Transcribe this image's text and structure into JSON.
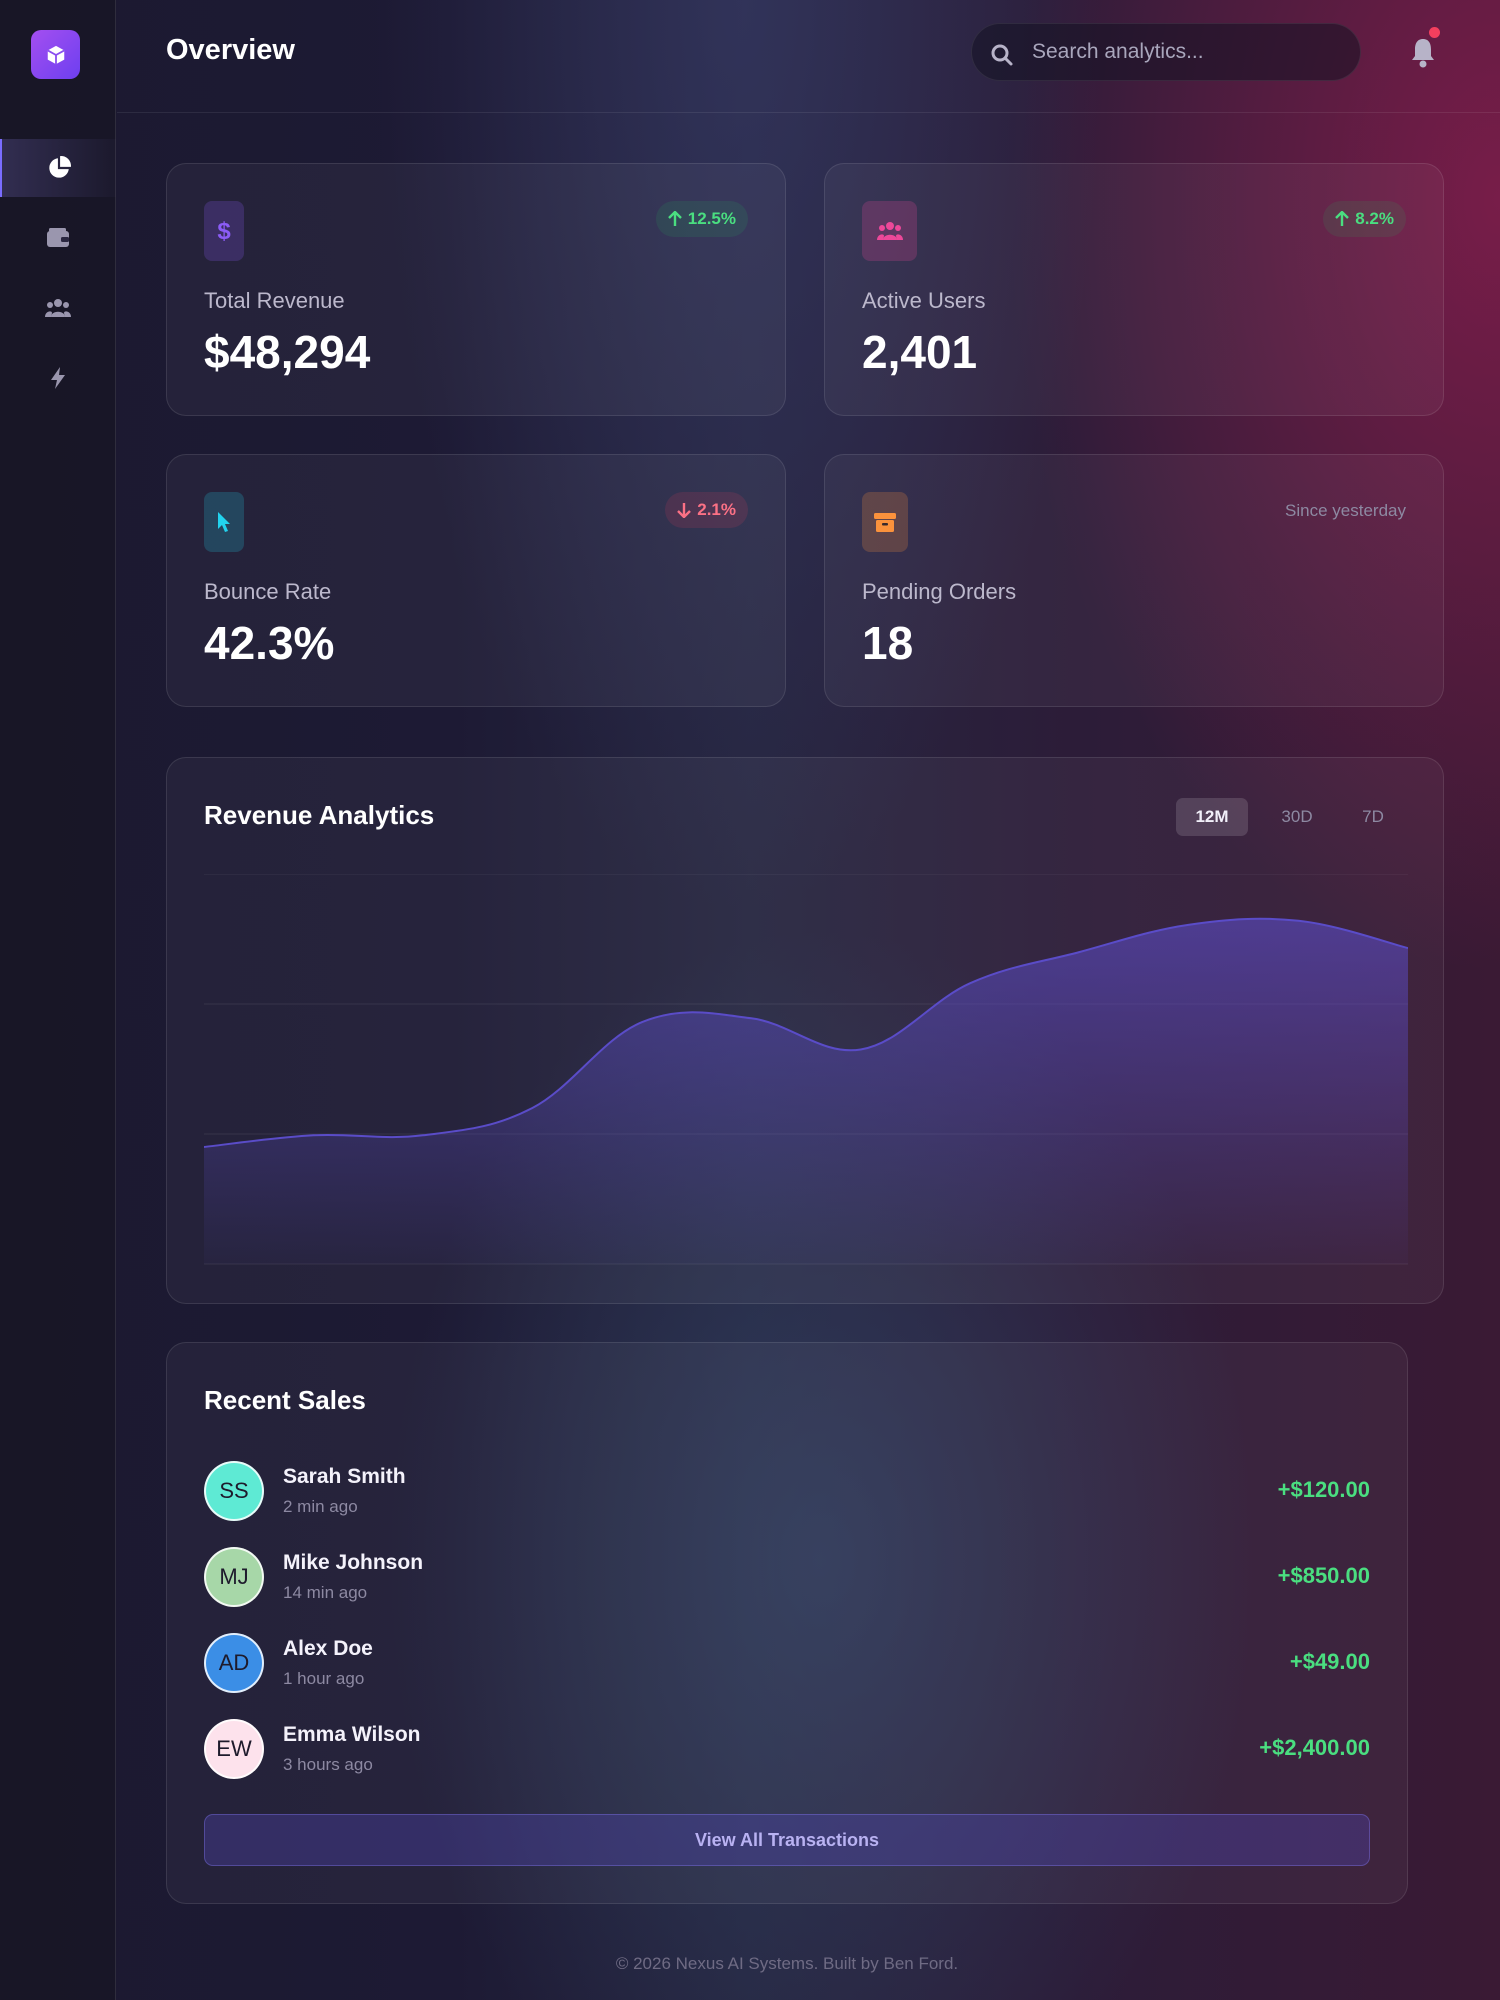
{
  "header": {
    "title": "Overview",
    "search_placeholder": "Search analytics..."
  },
  "sidebar": {
    "items": [
      {
        "name": "chart-pie-icon",
        "active": true
      },
      {
        "name": "wallet-icon",
        "active": false
      },
      {
        "name": "users-icon",
        "active": false
      },
      {
        "name": "bolt-icon",
        "active": false
      }
    ]
  },
  "stats": [
    {
      "label": "Total Revenue",
      "value": "$48,294",
      "badge": "12.5%",
      "trend": "up",
      "icon": "dollar-icon",
      "accent": "#8b5cf6"
    },
    {
      "label": "Active Users",
      "value": "2,401",
      "badge": "8.2%",
      "trend": "up",
      "icon": "users-icon",
      "accent": "#ec4899"
    },
    {
      "label": "Bounce Rate",
      "value": "42.3%",
      "badge": "2.1%",
      "trend": "down",
      "icon": "cursor-icon",
      "accent": "#22d3ee"
    },
    {
      "label": "Pending Orders",
      "value": "18",
      "note": "Since yesterday",
      "icon": "box-icon",
      "accent": "#fb923c"
    }
  ],
  "chart": {
    "title": "Revenue Analytics",
    "ranges": [
      "12M",
      "30D",
      "7D"
    ],
    "active_range": "12M"
  },
  "chart_data": {
    "type": "area",
    "title": "Revenue Analytics",
    "xlabel": "",
    "ylabel": "",
    "x": [
      0,
      1,
      2,
      3,
      4,
      5,
      6,
      7,
      8,
      9,
      10,
      11
    ],
    "values": [
      30,
      33,
      33,
      40,
      62,
      63,
      55,
      72,
      80,
      87,
      88,
      81
    ],
    "ylim": [
      0,
      100
    ],
    "grid": true,
    "series_color": "#5b4bc4"
  },
  "sales": {
    "title": "Recent Sales",
    "items": [
      {
        "initials": "SS",
        "name": "Sarah Smith",
        "time": "2 min ago",
        "amount": "+$120.00",
        "color": "#5eead4"
      },
      {
        "initials": "MJ",
        "name": "Mike Johnson",
        "time": "14 min ago",
        "amount": "+$850.00",
        "color": "#a7d7a8"
      },
      {
        "initials": "AD",
        "name": "Alex Doe",
        "time": "1 hour ago",
        "amount": "+$49.00",
        "color": "#3b8ee6"
      },
      {
        "initials": "EW",
        "name": "Emma Wilson",
        "time": "3 hours ago",
        "amount": "+$2,400.00",
        "color": "#fde2ec"
      }
    ],
    "view_all_label": "View All Transactions"
  },
  "footer": {
    "text": "© 2026 Nexus AI Systems. Built by Ben Ford."
  }
}
